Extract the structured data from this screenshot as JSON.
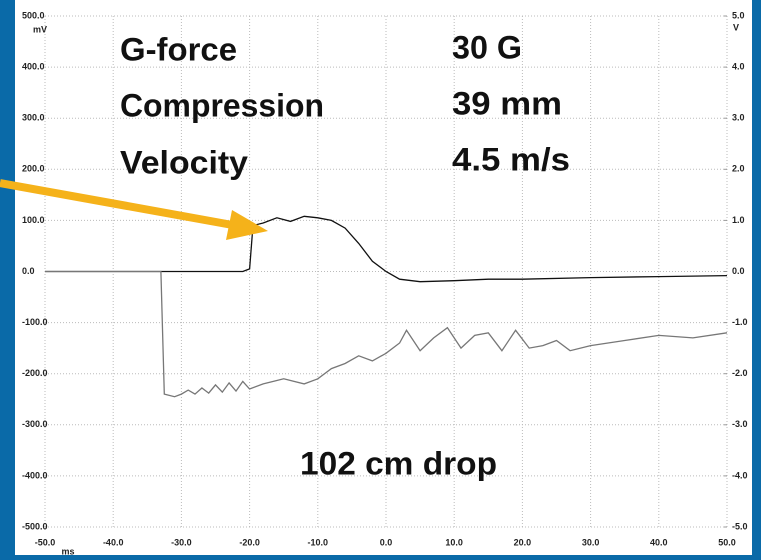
{
  "chart_data": {
    "type": "line",
    "y_unit": "mV",
    "y2_unit": "V",
    "x_unit": "ms",
    "annotations": [
      "G-force",
      "30 G",
      "Compression",
      "39 mm",
      "Velocity",
      "4.5 m/s",
      "102 cm drop"
    ],
    "xlim": [
      -50,
      50
    ],
    "xticks": [
      {
        "value": -50,
        "label": "-50.0"
      },
      {
        "value": -40,
        "label": "-40.0"
      },
      {
        "value": -30,
        "label": "-30.0"
      },
      {
        "value": -20,
        "label": "-20.0"
      },
      {
        "value": -10,
        "label": "-10.0"
      },
      {
        "value": 0,
        "label": "0.0"
      },
      {
        "value": 10,
        "label": "10.0"
      },
      {
        "value": 20,
        "label": "20.0"
      },
      {
        "value": 30,
        "label": "30.0"
      },
      {
        "value": 40,
        "label": "40.0"
      },
      {
        "value": 50,
        "label": "50.0"
      }
    ],
    "ylim": [
      -500,
      500
    ],
    "yticks": [
      {
        "value": -500,
        "label": "-500.0"
      },
      {
        "value": -400,
        "label": "-400.0"
      },
      {
        "value": -300,
        "label": "-300.0"
      },
      {
        "value": -200,
        "label": "-200.0"
      },
      {
        "value": -100,
        "label": "-100.0"
      },
      {
        "value": 0,
        "label": "0.0"
      },
      {
        "value": 100,
        "label": "100.0"
      },
      {
        "value": 200,
        "label": "200.0"
      },
      {
        "value": 300,
        "label": "300.0"
      },
      {
        "value": 400,
        "label": "400.0"
      },
      {
        "value": 500,
        "label": "500.0"
      }
    ],
    "y2lim": [
      -5,
      5
    ],
    "y2ticks": [
      {
        "value": -5,
        "label": "-5.0"
      },
      {
        "value": -4,
        "label": "-4.0"
      },
      {
        "value": -3,
        "label": "-3.0"
      },
      {
        "value": -2,
        "label": "-2.0"
      },
      {
        "value": -1,
        "label": "-1.0"
      },
      {
        "value": 0,
        "label": "0.0"
      },
      {
        "value": 1,
        "label": "1.0"
      },
      {
        "value": 2,
        "label": "2.0"
      },
      {
        "value": 3,
        "label": "3.0"
      },
      {
        "value": 4,
        "label": "4.0"
      },
      {
        "value": 5,
        "label": "5.0"
      }
    ],
    "grid": true,
    "series": [
      {
        "color": "#111111",
        "x": [
          -50,
          -40,
          -30,
          -21,
          -20,
          -19.5,
          -18,
          -16,
          -14,
          -12,
          -10,
          -8,
          -6,
          -4,
          -2,
          0,
          2,
          5,
          10,
          15,
          20,
          30,
          40,
          50
        ],
        "values": [
          0,
          0,
          0,
          0,
          5,
          90,
          95,
          105,
          98,
          108,
          105,
          100,
          85,
          55,
          20,
          0,
          -15,
          -20,
          -18,
          -15,
          -15,
          -12,
          -10,
          -8
        ]
      },
      {
        "color": "#777777",
        "x": [
          -50,
          -40,
          -33,
          -32.5,
          -31,
          -30,
          -29,
          -28,
          -27,
          -26,
          -25,
          -24,
          -23,
          -22,
          -21,
          -20,
          -18,
          -15,
          -12,
          -10,
          -8,
          -6,
          -4,
          -2,
          0,
          2,
          3,
          5,
          7,
          9,
          11,
          13,
          15,
          17,
          19,
          21,
          23,
          25,
          27,
          30,
          35,
          40,
          45,
          50
        ],
        "values": [
          0,
          0,
          0,
          -240,
          -245,
          -240,
          -232,
          -240,
          -228,
          -238,
          -222,
          -236,
          -218,
          -234,
          -215,
          -230,
          -220,
          -210,
          -220,
          -210,
          -190,
          -180,
          -165,
          -175,
          -160,
          -140,
          -115,
          -155,
          -130,
          -110,
          -150,
          -125,
          -120,
          -155,
          -115,
          -150,
          -145,
          -135,
          -155,
          -145,
          -135,
          -125,
          -130,
          -120
        ]
      }
    ]
  }
}
